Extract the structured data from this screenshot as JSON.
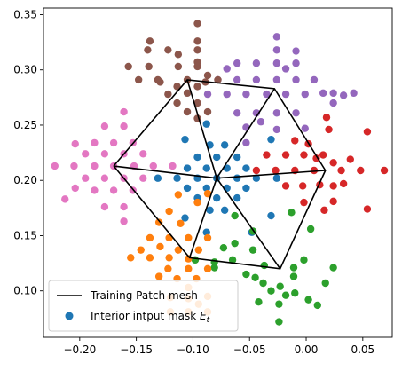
{
  "chart_data": {
    "type": "scatter",
    "title": "",
    "xlabel": "",
    "ylabel": "",
    "xlim": [
      -0.232,
      0.076
    ],
    "ylim": [
      0.058,
      0.356
    ],
    "x_ticks": [
      -0.2,
      -0.15,
      -0.1,
      -0.05,
      0.0,
      0.05
    ],
    "x_tick_labels": [
      "−0.20",
      "−0.15",
      "−0.10",
      "−0.05",
      "0.00",
      "0.05"
    ],
    "y_ticks": [
      0.1,
      0.15,
      0.2,
      0.25,
      0.3,
      0.35
    ],
    "y_tick_labels": [
      "0.10",
      "0.15",
      "0.20",
      "0.25",
      "0.30",
      "0.35"
    ],
    "grid": false,
    "legend": {
      "position": "lower-left",
      "entries": [
        {
          "label": "Training Patch mesh",
          "kind": "line",
          "color": "#000000"
        },
        {
          "label": "Interior intput mask ",
          "subscript_label": "E",
          "subscript_index": "t",
          "kind": "marker",
          "color": "#1f77b4"
        }
      ]
    },
    "mesh": {
      "color": "#000000",
      "outline": [
        [
          -0.17,
          0.213
        ],
        [
          -0.105,
          0.291
        ],
        [
          -0.028,
          0.283
        ],
        [
          0.017,
          0.209
        ],
        [
          -0.023,
          0.12
        ],
        [
          -0.103,
          0.13
        ],
        [
          -0.17,
          0.213
        ]
      ],
      "center": [
        -0.079,
        0.202
      ],
      "spokes": [
        [
          -0.17,
          0.213
        ],
        [
          -0.105,
          0.291
        ],
        [
          -0.028,
          0.283
        ],
        [
          0.017,
          0.209
        ],
        [
          -0.023,
          0.12
        ],
        [
          -0.103,
          0.13
        ]
      ]
    },
    "series": [
      {
        "color": "#1f77b4",
        "points": [
          [
            -0.079,
            0.202
          ],
          [
            -0.096,
            0.202
          ],
          [
            -0.061,
            0.202
          ],
          [
            -0.114,
            0.202
          ],
          [
            -0.044,
            0.202
          ],
          [
            -0.131,
            0.202
          ],
          [
            -0.026,
            0.202
          ],
          [
            -0.088,
            0.211
          ],
          [
            -0.07,
            0.211
          ],
          [
            -0.105,
            0.211
          ],
          [
            -0.053,
            0.211
          ],
          [
            -0.088,
            0.193
          ],
          [
            -0.07,
            0.193
          ],
          [
            -0.105,
            0.193
          ],
          [
            -0.053,
            0.193
          ],
          [
            -0.079,
            0.221
          ],
          [
            -0.096,
            0.221
          ],
          [
            -0.061,
            0.221
          ],
          [
            -0.079,
            0.184
          ],
          [
            -0.096,
            0.184
          ],
          [
            -0.061,
            0.184
          ],
          [
            -0.085,
            0.232
          ],
          [
            -0.072,
            0.232
          ],
          [
            -0.085,
            0.173
          ],
          [
            -0.072,
            0.173
          ],
          [
            -0.088,
            0.251
          ],
          [
            -0.031,
            0.237
          ],
          [
            -0.107,
            0.237
          ],
          [
            -0.107,
            0.166
          ],
          [
            -0.088,
            0.153
          ],
          [
            -0.048,
            0.153
          ],
          [
            -0.031,
            0.168
          ]
        ]
      },
      {
        "color": "#2ca02c",
        "points": [
          [
            -0.063,
            0.168
          ],
          [
            -0.047,
            0.154
          ],
          [
            -0.063,
            0.143
          ],
          [
            -0.047,
            0.137
          ],
          [
            -0.013,
            0.171
          ],
          [
            0.004,
            0.156
          ],
          [
            -0.037,
            0.123
          ],
          [
            -0.065,
            0.128
          ],
          [
            -0.081,
            0.126
          ],
          [
            -0.098,
            0.128
          ],
          [
            -0.081,
            0.121
          ],
          [
            -0.053,
            0.115
          ],
          [
            -0.038,
            0.107
          ],
          [
            -0.023,
            0.104
          ],
          [
            -0.011,
            0.113
          ],
          [
            -0.002,
            0.128
          ],
          [
            -0.01,
            0.098
          ],
          [
            -0.031,
            0.1
          ],
          [
            -0.045,
            0.112
          ],
          [
            -0.018,
            0.096
          ],
          [
            -0.024,
            0.088
          ],
          [
            -0.042,
            0.09
          ],
          [
            -0.024,
            0.072
          ],
          [
            0.002,
            0.092
          ],
          [
            0.01,
            0.087
          ],
          [
            0.017,
            0.107
          ],
          [
            0.024,
            0.121
          ],
          [
            -0.011,
            0.121
          ],
          [
            -0.073,
            0.139
          ]
        ]
      },
      {
        "color": "#ff7f0e",
        "points": [
          [
            -0.087,
            0.188
          ],
          [
            -0.096,
            0.18
          ],
          [
            -0.113,
            0.187
          ],
          [
            -0.121,
            0.172
          ],
          [
            -0.111,
            0.161
          ],
          [
            -0.13,
            0.162
          ],
          [
            -0.138,
            0.148
          ],
          [
            -0.121,
            0.148
          ],
          [
            -0.104,
            0.148
          ],
          [
            -0.087,
            0.148
          ],
          [
            -0.129,
            0.14
          ],
          [
            -0.113,
            0.137
          ],
          [
            -0.095,
            0.137
          ],
          [
            -0.146,
            0.137
          ],
          [
            -0.104,
            0.129
          ],
          [
            -0.122,
            0.12
          ],
          [
            -0.104,
            0.12
          ],
          [
            -0.087,
            0.12
          ],
          [
            -0.13,
            0.113
          ],
          [
            -0.114,
            0.111
          ],
          [
            -0.097,
            0.111
          ],
          [
            -0.155,
            0.13
          ],
          [
            -0.138,
            0.13
          ],
          [
            -0.121,
            0.13
          ],
          [
            -0.104,
            0.103
          ],
          [
            -0.12,
            0.094
          ],
          [
            -0.104,
            0.093
          ],
          [
            -0.087,
            0.095
          ],
          [
            -0.104,
            0.081
          ],
          [
            -0.12,
            0.081
          ],
          [
            -0.087,
            0.081
          ],
          [
            -0.095,
            0.088
          ]
        ]
      },
      {
        "color": "#d62728",
        "points": [
          [
            -0.044,
            0.209
          ],
          [
            -0.035,
            0.223
          ],
          [
            -0.027,
            0.209
          ],
          [
            -0.018,
            0.223
          ],
          [
            -0.01,
            0.209
          ],
          [
            -0.002,
            0.223
          ],
          [
            0.007,
            0.209
          ],
          [
            -0.018,
            0.195
          ],
          [
            -0.003,
            0.195
          ],
          [
            0.012,
            0.196
          ],
          [
            -0.01,
            0.236
          ],
          [
            0.002,
            0.233
          ],
          [
            0.009,
            0.22
          ],
          [
            0.015,
            0.223
          ],
          [
            0.024,
            0.216
          ],
          [
            0.02,
            0.246
          ],
          [
            0.024,
            0.195
          ],
          [
            0.031,
            0.209
          ],
          [
            0.033,
            0.197
          ],
          [
            0.024,
            0.181
          ],
          [
            0.039,
            0.219
          ],
          [
            0.048,
            0.209
          ],
          [
            0.054,
            0.244
          ],
          [
            0.054,
            0.174
          ],
          [
            0.069,
            0.209
          ],
          [
            0.018,
            0.257
          ],
          [
            0.016,
            0.173
          ],
          [
            -0.002,
            0.18
          ]
        ]
      },
      {
        "color": "#9467bd",
        "points": [
          [
            -0.053,
            0.234
          ],
          [
            -0.053,
            0.248
          ],
          [
            -0.04,
            0.253
          ],
          [
            -0.026,
            0.246
          ],
          [
            -0.061,
            0.261
          ],
          [
            -0.044,
            0.261
          ],
          [
            -0.026,
            0.261
          ],
          [
            -0.009,
            0.261
          ],
          [
            -0.087,
            0.278
          ],
          [
            -0.07,
            0.278
          ],
          [
            -0.053,
            0.278
          ],
          [
            -0.035,
            0.278
          ],
          [
            -0.018,
            0.278
          ],
          [
            -0.001,
            0.278
          ],
          [
            -0.078,
            0.291
          ],
          [
            -0.061,
            0.291
          ],
          [
            -0.044,
            0.291
          ],
          [
            -0.026,
            0.291
          ],
          [
            -0.009,
            0.291
          ],
          [
            0.007,
            0.291
          ],
          [
            -0.061,
            0.306
          ],
          [
            -0.044,
            0.306
          ],
          [
            -0.026,
            0.306
          ],
          [
            -0.009,
            0.306
          ],
          [
            -0.07,
            0.301
          ],
          [
            -0.018,
            0.301
          ],
          [
            -0.026,
            0.318
          ],
          [
            -0.026,
            0.33
          ],
          [
            -0.009,
            0.317
          ],
          [
            0.024,
            0.279
          ],
          [
            0.033,
            0.277
          ],
          [
            0.042,
            0.279
          ],
          [
            0.015,
            0.279
          ],
          [
            0.024,
            0.27
          ],
          [
            -0.001,
            0.247
          ]
        ]
      },
      {
        "color": "#8c564b",
        "points": [
          [
            -0.105,
            0.291
          ],
          [
            -0.105,
            0.279
          ],
          [
            -0.096,
            0.285
          ],
          [
            -0.114,
            0.285
          ],
          [
            -0.122,
            0.278
          ],
          [
            -0.096,
            0.27
          ],
          [
            -0.114,
            0.27
          ],
          [
            -0.105,
            0.262
          ],
          [
            -0.087,
            0.262
          ],
          [
            -0.096,
            0.256
          ],
          [
            -0.148,
            0.291
          ],
          [
            -0.131,
            0.291
          ],
          [
            -0.113,
            0.303
          ],
          [
            -0.096,
            0.303
          ],
          [
            -0.087,
            0.295
          ],
          [
            -0.078,
            0.291
          ],
          [
            -0.14,
            0.318
          ],
          [
            -0.122,
            0.318
          ],
          [
            -0.096,
            0.318
          ],
          [
            -0.113,
            0.314
          ],
          [
            -0.139,
            0.303
          ],
          [
            -0.157,
            0.303
          ],
          [
            -0.129,
            0.289
          ],
          [
            -0.138,
            0.326
          ],
          [
            -0.096,
            0.326
          ],
          [
            -0.096,
            0.342
          ],
          [
            -0.096,
            0.307
          ],
          [
            -0.089,
            0.289
          ]
        ]
      },
      {
        "color": "#e377c2",
        "points": [
          [
            -0.17,
            0.213
          ],
          [
            -0.187,
            0.213
          ],
          [
            -0.205,
            0.213
          ],
          [
            -0.222,
            0.213
          ],
          [
            -0.178,
            0.224
          ],
          [
            -0.178,
            0.202
          ],
          [
            -0.195,
            0.224
          ],
          [
            -0.195,
            0.202
          ],
          [
            -0.161,
            0.224
          ],
          [
            -0.161,
            0.202
          ],
          [
            -0.17,
            0.234
          ],
          [
            -0.17,
            0.191
          ],
          [
            -0.187,
            0.234
          ],
          [
            -0.187,
            0.191
          ],
          [
            -0.153,
            0.234
          ],
          [
            -0.153,
            0.191
          ],
          [
            -0.161,
            0.249
          ],
          [
            -0.161,
            0.176
          ],
          [
            -0.178,
            0.249
          ],
          [
            -0.178,
            0.176
          ],
          [
            -0.161,
            0.262
          ],
          [
            -0.161,
            0.163
          ],
          [
            -0.152,
            0.213
          ],
          [
            -0.135,
            0.213
          ],
          [
            -0.118,
            0.213
          ],
          [
            -0.144,
            0.224
          ],
          [
            -0.144,
            0.202
          ],
          [
            -0.204,
            0.233
          ],
          [
            -0.204,
            0.193
          ],
          [
            -0.213,
            0.183
          ]
        ]
      }
    ]
  }
}
